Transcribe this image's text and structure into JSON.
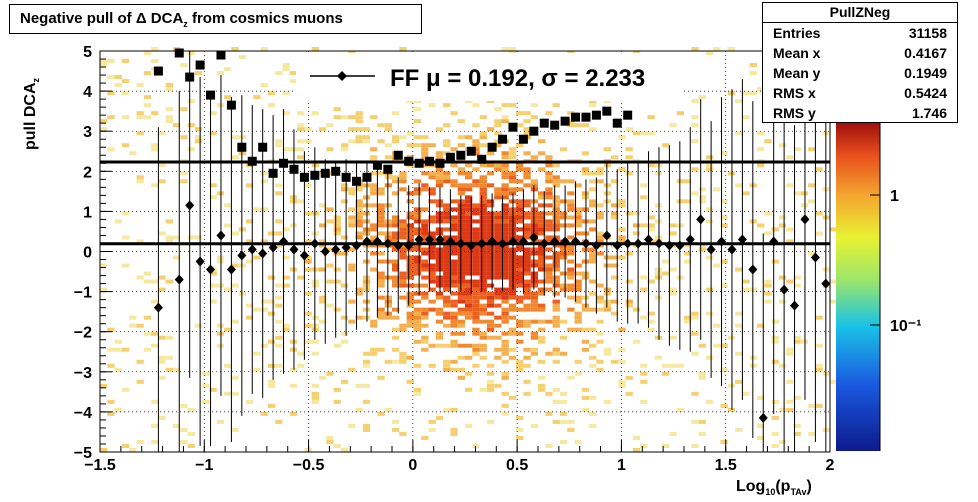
{
  "title": {
    "main": "Negative pull of Δ DCA",
    "sub": "z",
    "tail": " from cosmics muons"
  },
  "stats": {
    "name": "PullZNeg",
    "rows": [
      {
        "label": "Entries",
        "value": "31158"
      },
      {
        "label": "Mean x",
        "value": "0.4167"
      },
      {
        "label": "Mean y",
        "value": "0.1949"
      },
      {
        "label": "RMS x",
        "value": "0.5424"
      },
      {
        "label": "RMS y",
        "value": "1.746"
      }
    ]
  },
  "legend": {
    "text": "FF μ =  0.192, σ =   2.233"
  },
  "colors": {
    "marker": "#000000",
    "frame": "#000000"
  },
  "chart_data": {
    "type": "heatmap",
    "xlabel": {
      "main": "Log",
      "sub1": "10",
      "mid": "(p",
      "sub2": "TAv",
      "end": ")"
    },
    "ylabel": {
      "main": "pull DCA",
      "sub": "z"
    },
    "xlim": [
      -1.5,
      2
    ],
    "ylim": [
      -5,
      5
    ],
    "x_ticks": [
      -1.5,
      -1,
      -0.5,
      0,
      0.5,
      1,
      1.5,
      2
    ],
    "x_tick_labels": [
      "−1.5",
      "−1",
      "−0.5",
      "0",
      "0.5",
      "1",
      "1.5",
      "2"
    ],
    "y_ticks": [
      -5,
      -4,
      -3,
      -2,
      -1,
      0,
      1,
      2,
      3,
      4,
      5
    ],
    "y_tick_labels": [
      "−5",
      "−4",
      "−3",
      "−2",
      "−1",
      "0",
      "1",
      "2",
      "3",
      "4",
      "5"
    ],
    "grid": true,
    "z_scale": "log",
    "z_tick_labels": [
      "1",
      "10⁻¹"
    ],
    "lines": [
      {
        "name": "mu",
        "y": 0.192
      },
      {
        "name": "sigma",
        "y": 2.233
      }
    ],
    "series": [
      {
        "role": "mean",
        "x": [
          -1.22,
          -1.12,
          -1.07,
          -1.02,
          -0.97,
          -0.92,
          -0.87,
          -0.82,
          -0.77,
          -0.72,
          -0.67,
          -0.62,
          -0.57,
          -0.52,
          -0.47,
          -0.42,
          -0.37,
          -0.32,
          -0.27,
          -0.22,
          -0.17,
          -0.12,
          -0.07,
          -0.02,
          0.03,
          0.08,
          0.13,
          0.18,
          0.23,
          0.28,
          0.33,
          0.38,
          0.43,
          0.48,
          0.53,
          0.58,
          0.63,
          0.68,
          0.73,
          0.78,
          0.83,
          0.88,
          0.93,
          0.98,
          1.03,
          1.08,
          1.13,
          1.18,
          1.23,
          1.28,
          1.33,
          1.38,
          1.43,
          1.48,
          1.53,
          1.58,
          1.63,
          1.68,
          1.73,
          1.78,
          1.83,
          1.88,
          1.93,
          1.98
        ],
        "y": [
          -1.4,
          -0.7,
          1.15,
          -0.25,
          -0.45,
          0.4,
          -0.45,
          -0.1,
          0.05,
          -0.05,
          0.1,
          0.25,
          0.05,
          -0.1,
          0.2,
          0.0,
          0.05,
          0.1,
          0.15,
          0.25,
          0.25,
          0.2,
          0.15,
          0.15,
          0.3,
          0.3,
          0.3,
          0.25,
          0.2,
          0.15,
          0.2,
          0.25,
          0.2,
          0.25,
          0.25,
          0.35,
          0.2,
          0.25,
          0.25,
          0.25,
          0.2,
          0.15,
          0.4,
          0.15,
          0.2,
          0.2,
          0.3,
          0.2,
          0.15,
          0.15,
          0.3,
          0.8,
          0.05,
          0.25,
          0.05,
          0.3,
          -0.45,
          -4.15,
          0.25,
          -0.95,
          -1.35,
          0.8,
          -0.15,
          -0.8
        ],
        "err": [
          4.5,
          4.7,
          4.3,
          4.6,
          4.4,
          4.0,
          4.3,
          4.0,
          3.6,
          3.6,
          3.3,
          3.3,
          3.0,
          2.6,
          2.4,
          2.3,
          2.2,
          2.2,
          2.1,
          2.0,
          1.9,
          1.8,
          1.7,
          1.5,
          1.4,
          1.3,
          1.3,
          1.3,
          1.2,
          1.2,
          1.2,
          1.2,
          1.2,
          1.2,
          1.3,
          1.3,
          1.3,
          1.4,
          1.4,
          1.5,
          1.6,
          1.7,
          1.8,
          1.9,
          2.0,
          2.0,
          2.2,
          2.4,
          2.5,
          2.6,
          2.8,
          3.0,
          3.2,
          3.6,
          4.0,
          4.0,
          4.2,
          4.6,
          4.3,
          4.4,
          4.5,
          4.5,
          4.6,
          4.7
        ],
        "marker": "diamond"
      },
      {
        "role": "rms",
        "x": [
          -1.22,
          -1.12,
          -1.07,
          -1.02,
          -0.97,
          -0.92,
          -0.87,
          -0.82,
          -0.77,
          -0.72,
          -0.67,
          -0.62,
          -0.57,
          -0.52,
          -0.47,
          -0.42,
          -0.37,
          -0.32,
          -0.27,
          -0.22,
          -0.17,
          -0.12,
          -0.07,
          -0.02,
          0.03,
          0.08,
          0.13,
          0.18,
          0.23,
          0.28,
          0.33,
          0.38,
          0.43,
          0.48,
          0.53,
          0.58,
          0.63,
          0.68,
          0.73,
          0.78,
          0.83,
          0.88,
          0.93,
          0.98,
          1.03
        ],
        "y": [
          4.5,
          4.95,
          4.35,
          4.65,
          3.9,
          4.9,
          3.65,
          2.6,
          2.25,
          2.6,
          1.95,
          2.2,
          2.05,
          1.85,
          1.9,
          1.95,
          2.0,
          1.85,
          1.75,
          1.85,
          2.15,
          2.05,
          2.4,
          2.25,
          2.2,
          2.25,
          2.2,
          2.35,
          2.4,
          2.5,
          2.3,
          2.6,
          2.8,
          3.1,
          2.8,
          3.0,
          3.2,
          3.15,
          3.25,
          3.35,
          3.35,
          3.4,
          3.5,
          3.2,
          3.4
        ],
        "marker": "square"
      }
    ]
  }
}
